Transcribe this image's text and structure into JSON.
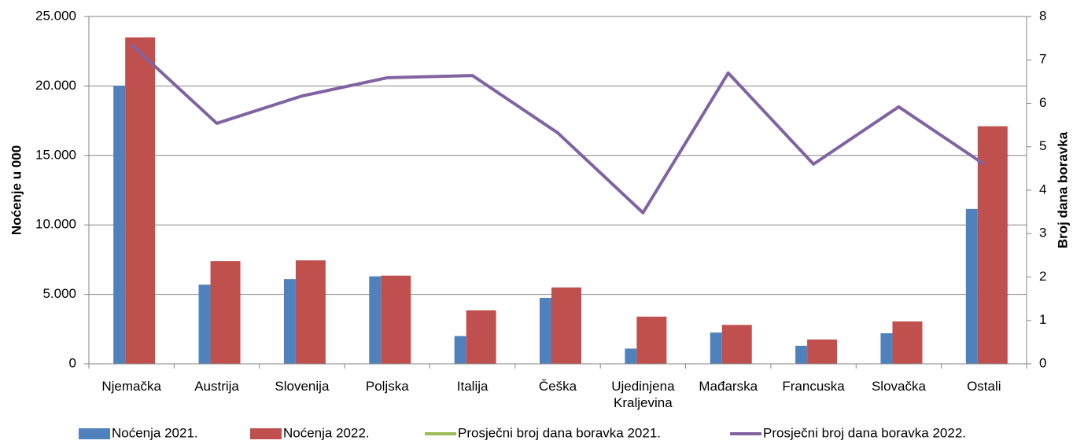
{
  "chart_data": {
    "type": "bar_line",
    "ylabel": "Noćenje u 000",
    "y2label": "Broj dana boravka",
    "categories": [
      "Njemačka",
      "Austrija",
      "Slovenija",
      "Poljska",
      "Italija",
      "Češka",
      "Ujedinjena Kraljevina",
      "Mađarska",
      "Francuska",
      "Slovačka",
      "Ostali"
    ],
    "series": [
      {
        "name": "Noćenja 2021.",
        "color": "#4f81bd",
        "kind": "bar",
        "values": [
          20000,
          5700,
          6100,
          6300,
          2000,
          4750,
          1100,
          2250,
          1300,
          2200,
          11150
        ]
      },
      {
        "name": "Noćenja 2022.",
        "color": "#c0504d",
        "kind": "bar",
        "values": [
          23500,
          7400,
          7450,
          6350,
          3850,
          5500,
          3400,
          2800,
          1750,
          3050,
          17100
        ]
      },
      {
        "name": "Prosječni broj dana boravka 2021.",
        "color": "#9bbb59",
        "kind": "line",
        "axis": "y2",
        "values": [
          null,
          null,
          null,
          null,
          null,
          null,
          null,
          null,
          null,
          null,
          null
        ]
      },
      {
        "name": "Prosječni broj dana boravka 2022.",
        "color": "#8064a2",
        "kind": "line",
        "axis": "y2",
        "values": [
          7.35,
          5.54,
          6.17,
          6.59,
          6.64,
          5.32,
          3.48,
          6.7,
          4.6,
          5.92,
          4.6
        ]
      }
    ],
    "ylim": [
      0,
      25000
    ],
    "yticks": [
      0,
      {
        "value": 5000,
        "label": "5.000"
      },
      {
        "value": 10000,
        "label": "10.000"
      },
      {
        "value": 15000,
        "label": "15.000"
      },
      {
        "value": 20000,
        "label": "20.000"
      },
      {
        "value": 25000,
        "label": "25.000"
      }
    ],
    "y2lim": [
      0,
      8
    ],
    "y2ticks": [
      0,
      1,
      2,
      3,
      4,
      5,
      6,
      7,
      8
    ],
    "grid": true,
    "legend": "bottom"
  }
}
